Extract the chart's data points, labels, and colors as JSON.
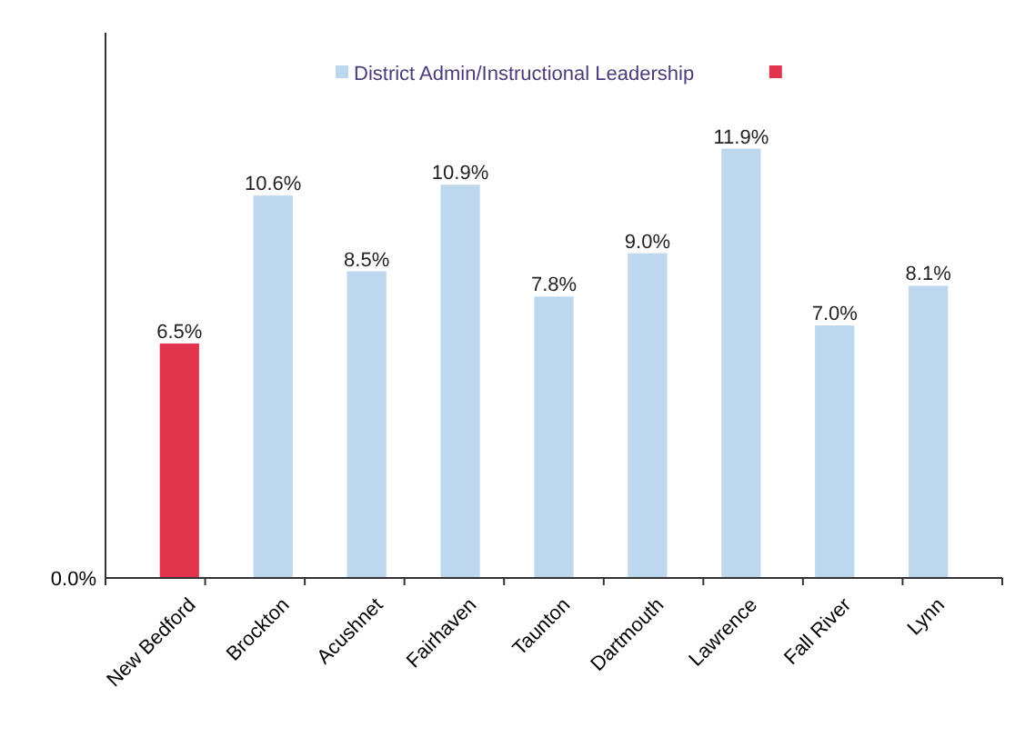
{
  "chart_data": {
    "type": "bar",
    "categories": [
      "New Bedford",
      "Brockton",
      "Acushnet",
      "Fairhaven",
      "Taunton",
      "Dartmouth",
      "Lawrence",
      "Fall River",
      "Lynn"
    ],
    "series": [
      {
        "name": "District Admin/Instructional Leadership",
        "color": "#bdd7ee",
        "values": [
          null,
          10.6,
          8.5,
          10.9,
          7.8,
          9.0,
          11.9,
          7.0,
          8.1
        ],
        "value_labels": [
          null,
          "10.6%",
          "8.5%",
          "10.9%",
          "7.8%",
          "9.0%",
          "11.9%",
          "7.0%",
          "8.1%"
        ]
      },
      {
        "color": "#e0354d",
        "values": [
          6.5,
          null,
          null,
          null,
          null,
          null,
          null,
          null,
          null
        ],
        "value_labels": [
          "6.5%",
          null,
          null,
          null,
          null,
          null,
          null,
          null,
          null
        ]
      }
    ],
    "annotations": [
      "0.0%"
    ],
    "legend": "top"
  }
}
